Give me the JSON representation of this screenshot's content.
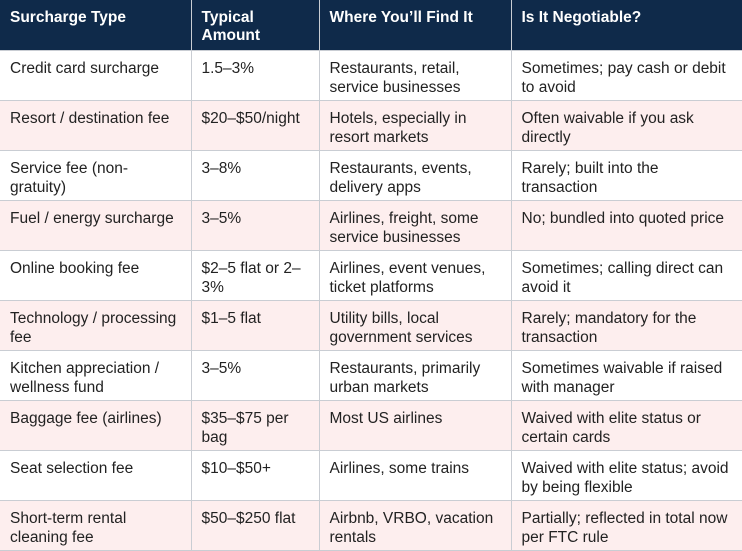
{
  "table": {
    "headers": [
      "Surcharge Type",
      "Typical Amount",
      "Where You’ll Find It",
      "Is It Negotiable?"
    ],
    "rows": [
      [
        "Credit card surcharge",
        "1.5–3%",
        "Restaurants, retail, service businesses",
        "Sometimes; pay cash or debit to avoid"
      ],
      [
        "Resort / destination fee",
        "$20–$50/night",
        "Hotels, especially in resort markets",
        "Often waivable if you ask directly"
      ],
      [
        "Service fee (non-gratuity)",
        "3–8%",
        "Restaurants, events, delivery apps",
        "Rarely; built into the transaction"
      ],
      [
        "Fuel / energy surcharge",
        "3–5%",
        "Airlines, freight, some service businesses",
        "No; bundled into quoted price"
      ],
      [
        "Online booking fee",
        "$2–5 flat or 2–3%",
        "Airlines, event venues, ticket platforms",
        "Sometimes; calling direct can avoid it"
      ],
      [
        "Technology / processing fee",
        "$1–5 flat",
        "Utility bills, local government services",
        "Rarely; mandatory for the transaction"
      ],
      [
        "Kitchen appreciation / wellness fund",
        "3–5%",
        "Restaurants, primarily urban markets",
        "Sometimes waivable if raised with manager"
      ],
      [
        "Baggage fee (airlines)",
        "$35–$75 per bag",
        "Most US airlines",
        "Waived with elite status or certain cards"
      ],
      [
        "Seat selection fee",
        "$10–$50+",
        "Airlines, some trains",
        "Waived with elite status; avoid by being flexible"
      ],
      [
        "Short-term rental cleaning fee",
        "$50–$250 flat",
        "Airbnb, VRBO, vacation rentals",
        "Partially; reflected in total now per FTC rule"
      ]
    ]
  },
  "colors": {
    "header_bg": "#0f2a4a",
    "header_text": "#ffffff",
    "row_alt_bg": "#fdeeee",
    "border": "#c9cdd3"
  }
}
